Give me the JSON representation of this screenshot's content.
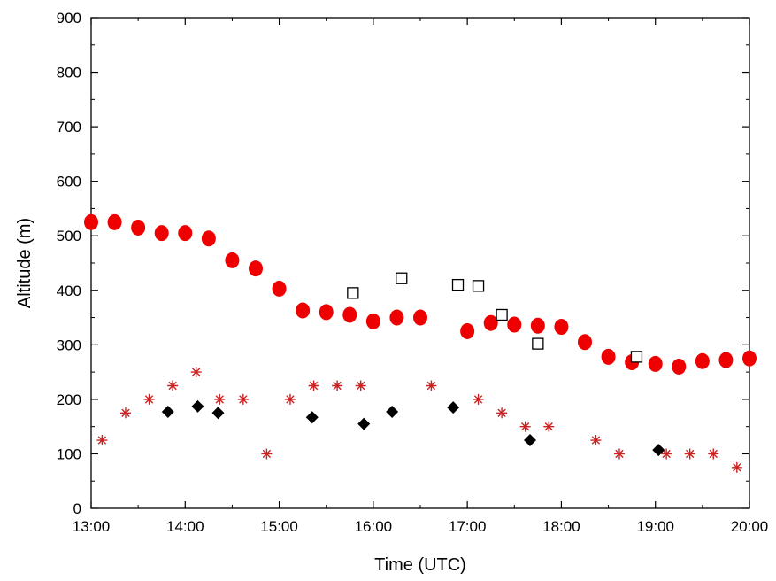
{
  "chart_data": {
    "type": "scatter",
    "title": "",
    "xlabel": "Time (UTC)",
    "ylabel": "Altitude (m)",
    "xlim": [
      13.0,
      20.0
    ],
    "ylim": [
      0,
      900
    ],
    "x_ticks": [
      "13:00",
      "14:00",
      "15:00",
      "16:00",
      "17:00",
      "18:00",
      "19:00",
      "20:00"
    ],
    "y_ticks": [
      "0",
      "100",
      "200",
      "300",
      "400",
      "500",
      "600",
      "700",
      "800",
      "900"
    ],
    "grid": false,
    "legend": "none",
    "series": [
      {
        "marker": "filled-circle",
        "color": "#ee0000",
        "points": [
          [
            "13:00",
            525
          ],
          [
            "13:15",
            525
          ],
          [
            "13:30",
            515
          ],
          [
            "13:45",
            505
          ],
          [
            "14:00",
            505
          ],
          [
            "14:15",
            495
          ],
          [
            "14:30",
            455
          ],
          [
            "14:45",
            440
          ],
          [
            "15:00",
            403
          ],
          [
            "15:15",
            363
          ],
          [
            "15:30",
            360
          ],
          [
            "15:45",
            355
          ],
          [
            "16:00",
            343
          ],
          [
            "16:15",
            350
          ],
          [
            "16:30",
            350
          ],
          [
            "17:00",
            325
          ],
          [
            "17:15",
            340
          ],
          [
            "17:30",
            337
          ],
          [
            "17:45",
            335
          ],
          [
            "18:00",
            333
          ],
          [
            "18:15",
            305
          ],
          [
            "18:30",
            278
          ],
          [
            "18:45",
            268
          ],
          [
            "19:00",
            265
          ],
          [
            "19:15",
            260
          ],
          [
            "19:30",
            270
          ],
          [
            "19:45",
            272
          ],
          [
            "20:00",
            275
          ]
        ]
      },
      {
        "marker": "open-square",
        "color": "#000000",
        "points": [
          [
            "15:47",
            395
          ],
          [
            "16:18",
            422
          ],
          [
            "16:54",
            410
          ],
          [
            "17:07",
            408
          ],
          [
            "17:22",
            355
          ],
          [
            "17:45",
            302
          ],
          [
            "18:48",
            278
          ]
        ]
      },
      {
        "marker": "asterisk",
        "color": "#cc2222",
        "points": [
          [
            "13:07",
            125
          ],
          [
            "13:22",
            175
          ],
          [
            "13:37",
            200
          ],
          [
            "13:52",
            225
          ],
          [
            "14:07",
            250
          ],
          [
            "14:22",
            200
          ],
          [
            "14:37",
            200
          ],
          [
            "14:52",
            100
          ],
          [
            "15:07",
            200
          ],
          [
            "15:22",
            225
          ],
          [
            "15:37",
            225
          ],
          [
            "15:52",
            225
          ],
          [
            "16:37",
            225
          ],
          [
            "17:07",
            200
          ],
          [
            "17:22",
            175
          ],
          [
            "17:37",
            150
          ],
          [
            "17:52",
            150
          ],
          [
            "18:22",
            125
          ],
          [
            "18:37",
            100
          ],
          [
            "19:07",
            100
          ],
          [
            "19:22",
            100
          ],
          [
            "19:37",
            100
          ],
          [
            "19:52",
            75
          ]
        ]
      },
      {
        "marker": "filled-diamond",
        "color": "#000000",
        "points": [
          [
            "13:49",
            177
          ],
          [
            "14:08",
            187
          ],
          [
            "14:21",
            175
          ],
          [
            "15:21",
            167
          ],
          [
            "15:54",
            155
          ],
          [
            "16:12",
            177
          ],
          [
            "16:51",
            185
          ],
          [
            "17:40",
            125
          ],
          [
            "19:02",
            107
          ]
        ]
      }
    ]
  }
}
